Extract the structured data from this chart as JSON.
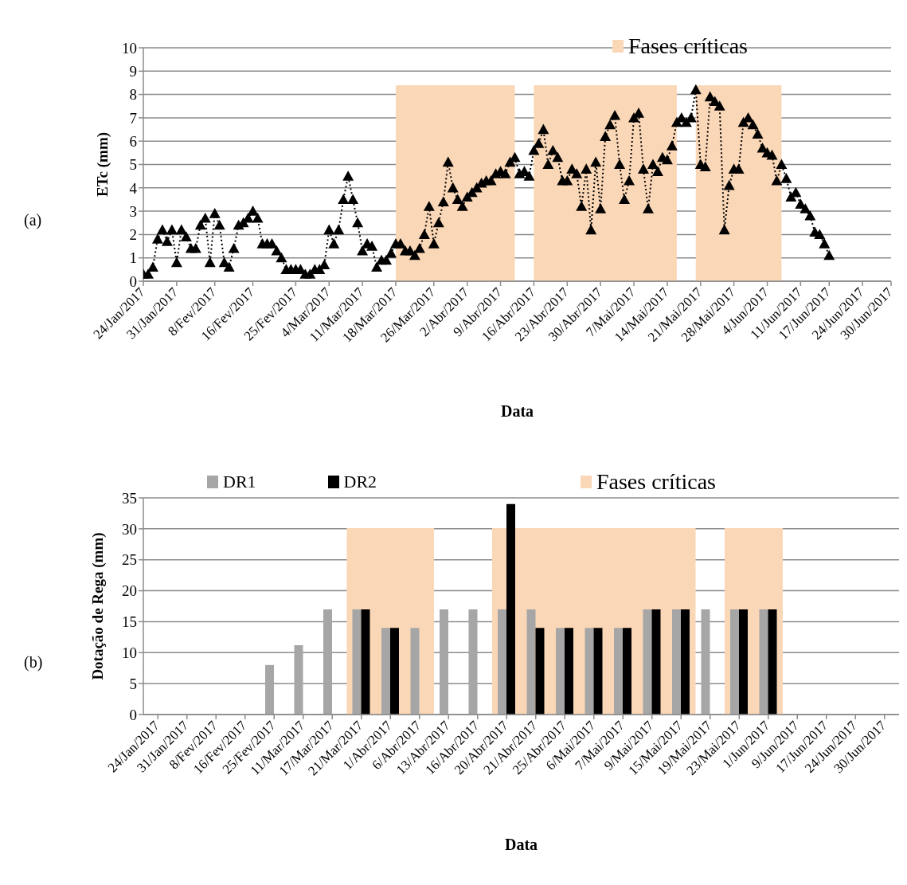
{
  "chart_data": [
    {
      "type": "line",
      "xlabel": "Data",
      "ylabel": "ETc (mm)",
      "annotations": [
        "(a)"
      ],
      "x": [
        "2017-01-24",
        "2017-01-25",
        "2017-01-26",
        "2017-01-27",
        "2017-01-28",
        "2017-01-29",
        "2017-01-30",
        "2017-01-31",
        "2017-02-01",
        "2017-02-02",
        "2017-02-03",
        "2017-02-04",
        "2017-02-05",
        "2017-02-06",
        "2017-02-07",
        "2017-02-08",
        "2017-02-09",
        "2017-02-10",
        "2017-02-11",
        "2017-02-12",
        "2017-02-13",
        "2017-02-14",
        "2017-02-15",
        "2017-02-16",
        "2017-02-17",
        "2017-02-18",
        "2017-02-19",
        "2017-02-20",
        "2017-02-21",
        "2017-02-22",
        "2017-02-23",
        "2017-02-24",
        "2017-02-25",
        "2017-02-26",
        "2017-02-27",
        "2017-02-28",
        "2017-03-01",
        "2017-03-02",
        "2017-03-03",
        "2017-03-04",
        "2017-03-05",
        "2017-03-06",
        "2017-03-07",
        "2017-03-08",
        "2017-03-09",
        "2017-03-10",
        "2017-03-11",
        "2017-03-12",
        "2017-03-13",
        "2017-03-14",
        "2017-03-15",
        "2017-03-16",
        "2017-03-17",
        "2017-03-18",
        "2017-03-19",
        "2017-03-20",
        "2017-03-21",
        "2017-03-22",
        "2017-03-23",
        "2017-03-24",
        "2017-03-25",
        "2017-03-26",
        "2017-03-27",
        "2017-03-28",
        "2017-03-29",
        "2017-03-30",
        "2017-03-31",
        "2017-04-01",
        "2017-04-02",
        "2017-04-03",
        "2017-04-04",
        "2017-04-05",
        "2017-04-06",
        "2017-04-07",
        "2017-04-08",
        "2017-04-09",
        "2017-04-10",
        "2017-04-11",
        "2017-04-12",
        "2017-04-13",
        "2017-04-14",
        "2017-04-15",
        "2017-04-16",
        "2017-04-17",
        "2017-04-18",
        "2017-04-19",
        "2017-04-20",
        "2017-04-21",
        "2017-04-22",
        "2017-04-23",
        "2017-04-24",
        "2017-04-25",
        "2017-04-26",
        "2017-04-27",
        "2017-04-28",
        "2017-04-29",
        "2017-04-30",
        "2017-05-01",
        "2017-05-02",
        "2017-05-03",
        "2017-05-04",
        "2017-05-05",
        "2017-05-06",
        "2017-05-07",
        "2017-05-08",
        "2017-05-09",
        "2017-05-10",
        "2017-05-11",
        "2017-05-12",
        "2017-05-13",
        "2017-05-14",
        "2017-05-15",
        "2017-05-16",
        "2017-05-17",
        "2017-05-18",
        "2017-05-19",
        "2017-05-20",
        "2017-05-21",
        "2017-05-22",
        "2017-05-23",
        "2017-05-24",
        "2017-05-25",
        "2017-05-26",
        "2017-05-27",
        "2017-05-28",
        "2017-05-29",
        "2017-05-30",
        "2017-05-31",
        "2017-06-01",
        "2017-06-02",
        "2017-06-03",
        "2017-06-04",
        "2017-06-05",
        "2017-06-06",
        "2017-06-07",
        "2017-06-08",
        "2017-06-09",
        "2017-06-10",
        "2017-06-11",
        "2017-06-12",
        "2017-06-13",
        "2017-06-14",
        "2017-06-15",
        "2017-06-16",
        "2017-06-17"
      ],
      "values": [
        0.3,
        0.3,
        0.6,
        1.8,
        2.2,
        1.7,
        2.2,
        0.8,
        2.2,
        1.9,
        1.4,
        1.4,
        2.4,
        2.7,
        0.8,
        2.9,
        2.4,
        0.8,
        0.6,
        1.4,
        2.4,
        2.5,
        2.7,
        3.0,
        2.7,
        1.6,
        1.6,
        1.6,
        1.3,
        1.0,
        0.5,
        0.5,
        0.5,
        0.5,
        0.3,
        0.3,
        0.5,
        0.5,
        0.7,
        2.2,
        1.6,
        2.2,
        3.5,
        4.5,
        3.5,
        2.5,
        1.3,
        1.6,
        1.5,
        0.6,
        0.9,
        0.9,
        1.2,
        1.6,
        1.6,
        1.3,
        1.3,
        1.1,
        1.4,
        2.0,
        3.2,
        1.6,
        2.5,
        3.4,
        5.1,
        4.0,
        3.5,
        3.2,
        3.6,
        3.8,
        4.0,
        4.2,
        4.3,
        4.3,
        4.6,
        4.7,
        4.6,
        5.1,
        5.3,
        4.6,
        4.7,
        4.5,
        5.6,
        5.9,
        6.5,
        5.0,
        5.6,
        5.3,
        4.3,
        4.3,
        4.8,
        4.6,
        3.2,
        4.8,
        2.2,
        5.1,
        3.1,
        6.2,
        6.7,
        7.1,
        5.0,
        3.5,
        4.3,
        7.0,
        7.2,
        4.8,
        3.1,
        5.0,
        4.7,
        5.3,
        5.2,
        5.8,
        6.8,
        7.0,
        6.8,
        7.0,
        8.2,
        5.0,
        4.9,
        7.9,
        7.7,
        7.5,
        2.2,
        4.1,
        4.8,
        4.8,
        6.8,
        7.0,
        6.7,
        6.3,
        5.7,
        5.5,
        5.4,
        4.3,
        5.0,
        4.4,
        3.6,
        3.8,
        3.3,
        3.1,
        2.8,
        2.1,
        2.0,
        1.6,
        1.1
      ],
      "color": "#000000",
      "marker": "triangle",
      "line_style": "dotted",
      "xlim": [
        "2017-01-24",
        "2017-06-30"
      ],
      "xticks": [
        {
          "value": "2017-01-24",
          "label": "24/Jan/2017"
        },
        {
          "value": "2017-01-31",
          "label": "31/Jan/2017"
        },
        {
          "value": "2017-02-08",
          "label": "8/Fev/2017"
        },
        {
          "value": "2017-02-16",
          "label": "16/Fev/2017"
        },
        {
          "value": "2017-02-25",
          "label": "25/Fev/2017"
        },
        {
          "value": "2017-03-04",
          "label": "4/Mar/2017"
        },
        {
          "value": "2017-03-11",
          "label": "11/Mar/2017"
        },
        {
          "value": "2017-03-18",
          "label": "18/Mar/2017"
        },
        {
          "value": "2017-03-26",
          "label": "26/Mar/2017"
        },
        {
          "value": "2017-04-02",
          "label": "2/Abr/2017"
        },
        {
          "value": "2017-04-09",
          "label": "9/Abr/2017"
        },
        {
          "value": "2017-04-16",
          "label": "16/Abr/2017"
        },
        {
          "value": "2017-04-23",
          "label": "23/Abr/2017"
        },
        {
          "value": "2017-04-30",
          "label": "30/Abr/2017"
        },
        {
          "value": "2017-05-07",
          "label": "7/Mai/2017"
        },
        {
          "value": "2017-05-14",
          "label": "14/Mai/2017"
        },
        {
          "value": "2017-05-21",
          "label": "21/Mai/2017"
        },
        {
          "value": "2017-05-28",
          "label": "28/Mai/2017"
        },
        {
          "value": "2017-06-04",
          "label": "4/Jun/2017"
        },
        {
          "value": "2017-06-11",
          "label": "11/Jun/2017"
        },
        {
          "value": "2017-06-17",
          "label": "17/Jun/2017"
        },
        {
          "value": "2017-06-24",
          "label": "24/Jun/2017"
        },
        {
          "value": "2017-06-30",
          "label": "30/Jun/2017"
        }
      ],
      "ylim": [
        0,
        10
      ],
      "yticks": [
        0,
        1,
        2,
        3,
        4,
        5,
        6,
        7,
        8,
        9,
        10
      ],
      "grid": "y",
      "legend": "top right",
      "bands": [
        {
          "axis": "x",
          "from": "2017-03-18",
          "to": "2017-04-12",
          "label": "Fases críticas",
          "color": "#fad7b7"
        },
        {
          "axis": "x",
          "from": "2017-04-16",
          "to": "2017-05-16",
          "color": "#fad7b7"
        },
        {
          "axis": "x",
          "from": "2017-05-20",
          "to": "2017-06-07",
          "color": "#fad7b7"
        }
      ]
    },
    {
      "type": "bar",
      "xlabel": "Data",
      "ylabel": "Dotação de Rega (mm)",
      "annotations": [
        "(b)"
      ],
      "categories": [
        "24/Jan/2017",
        "31/Jan/2017",
        "8/Fev/2017",
        "16/Fev/2017",
        "25/Fev/2017",
        "11/Mar/2017",
        "17/Mar/2017",
        "21/Mar/2017",
        "1/Abr/2017",
        "6/Abr/2017",
        "13/Abr/2017",
        "16/Abr/2017",
        "20/Abr/2017",
        "21/Abr/2017",
        "25/Abr/2017",
        "6/Mai/2017",
        "7/Mai/2017",
        "9/Mai/2017",
        "15/Mai/2017",
        "19/Mai/2017",
        "23/Mai/2017",
        "1/Jun/2017",
        "9/Jun/2017",
        "17/Jun/2017",
        "24/Jun/2017",
        "30/Jun/2017"
      ],
      "series": [
        {
          "name": "DR1",
          "color": "#a6a6a6",
          "values": [
            null,
            null,
            null,
            null,
            8,
            11.2,
            17,
            17,
            14,
            14,
            17,
            17,
            17,
            17,
            14,
            14,
            14,
            17,
            17,
            17,
            17,
            17,
            null,
            null,
            null,
            null
          ]
        },
        {
          "name": "DR2",
          "color": "#000000",
          "values": [
            null,
            null,
            null,
            null,
            null,
            null,
            null,
            17,
            14,
            null,
            null,
            null,
            34,
            14,
            14,
            14,
            14,
            17,
            17,
            null,
            17,
            17,
            null,
            null,
            null,
            null
          ]
        }
      ],
      "ylim": [
        0,
        35
      ],
      "yticks": [
        0,
        5,
        10,
        15,
        20,
        25,
        30,
        35
      ],
      "grid": "y",
      "legend": "top",
      "bands": [
        {
          "axis": "x",
          "from": "21/Mar/2017",
          "to": "6/Abr/2017",
          "label": "Fases críticas",
          "color": "#fad7b7"
        },
        {
          "axis": "x",
          "from": "20/Abr/2017",
          "to": "15/Mai/2017",
          "color": "#fad7b7"
        },
        {
          "axis": "x",
          "from": "23/Mai/2017",
          "to": "1/Jun/2017",
          "color": "#fad7b7"
        }
      ]
    }
  ]
}
